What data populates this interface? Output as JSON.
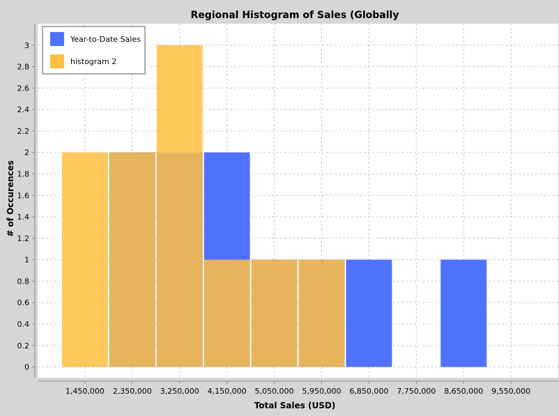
{
  "chart_data": {
    "type": "bar",
    "title": "Regional Histogram of Sales (Globally",
    "xlabel": "Total Sales (USD)",
    "ylabel": "# of Occurences",
    "xlim": [
      550000,
      10450000
    ],
    "ylim": [
      -0.1,
      3.2
    ],
    "bin_width": 900000,
    "x_ticks": [
      {
        "value": 1450000,
        "label": "1,450,000"
      },
      {
        "value": 2350000,
        "label": "2,350,000"
      },
      {
        "value": 3250000,
        "label": "3,250,000"
      },
      {
        "value": 4150000,
        "label": "4,150,000"
      },
      {
        "value": 5050000,
        "label": "5,050,000"
      },
      {
        "value": 5950000,
        "label": "5,950,000"
      },
      {
        "value": 6850000,
        "label": "6,850,000"
      },
      {
        "value": 7750000,
        "label": "7,750,000"
      },
      {
        "value": 8650000,
        "label": "8,650,000"
      },
      {
        "value": 9550000,
        "label": "9,550,000"
      }
    ],
    "y_ticks": [
      {
        "value": 0,
        "label": "0"
      },
      {
        "value": 0.2,
        "label": "0.2"
      },
      {
        "value": 0.4,
        "label": "0.4"
      },
      {
        "value": 0.6,
        "label": "0.6"
      },
      {
        "value": 0.8,
        "label": "0.8"
      },
      {
        "value": 1,
        "label": "1"
      },
      {
        "value": 1.2,
        "label": "1.2"
      },
      {
        "value": 1.4,
        "label": "1.4"
      },
      {
        "value": 1.6,
        "label": "1.6"
      },
      {
        "value": 1.8,
        "label": "1.8"
      },
      {
        "value": 2,
        "label": "2"
      },
      {
        "value": 2.2,
        "label": "2.2"
      },
      {
        "value": 2.4,
        "label": "2.4"
      },
      {
        "value": 2.6,
        "label": "2.6"
      },
      {
        "value": 2.8,
        "label": "2.8"
      },
      {
        "value": 3,
        "label": "3"
      }
    ],
    "grid": true,
    "legend_position": "top-left",
    "series": [
      {
        "name": "Year-to-Date Sales",
        "color": "#4f73ff",
        "bins": [
          {
            "start": 1900000,
            "end": 2800000,
            "count": 2
          },
          {
            "start": 2800000,
            "end": 3700000,
            "count": 2
          },
          {
            "start": 3700000,
            "end": 4600000,
            "count": 2
          },
          {
            "start": 4600000,
            "end": 5500000,
            "count": 1
          },
          {
            "start": 5500000,
            "end": 6400000,
            "count": 1
          },
          {
            "start": 6400000,
            "end": 7300000,
            "count": 1
          },
          {
            "start": 8200000,
            "end": 9100000,
            "count": 1
          }
        ]
      },
      {
        "name": "histogram 2",
        "color": "#ffbf40",
        "bins": [
          {
            "start": 1000000,
            "end": 1900000,
            "count": 2
          },
          {
            "start": 1900000,
            "end": 2800000,
            "count": 2
          },
          {
            "start": 2800000,
            "end": 3700000,
            "count": 3
          },
          {
            "start": 3700000,
            "end": 4600000,
            "count": 1
          },
          {
            "start": 4600000,
            "end": 5500000,
            "count": 1
          },
          {
            "start": 5500000,
            "end": 6400000,
            "count": 1
          }
        ]
      }
    ]
  }
}
